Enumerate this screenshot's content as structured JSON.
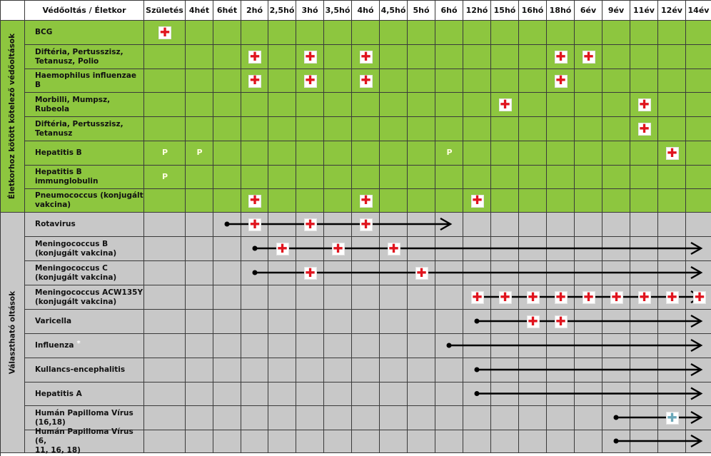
{
  "header": {
    "title": "Védőoltás / Életkor",
    "ages": [
      "Születés",
      "4hét",
      "6hét",
      "2hó",
      "2,5hó",
      "3hó",
      "3,5hó",
      "4hó",
      "4,5hó",
      "5hó",
      "6hó",
      "12hó",
      "15hó",
      "16hó",
      "18hó",
      "6év",
      "9év",
      "11év",
      "12év",
      "14év"
    ]
  },
  "sections": {
    "mandatory": "Életkorhoz kötött kötelező védőoltások",
    "optional": "Választható oltások"
  },
  "symbols": {
    "dose": "✚",
    "passive": "P",
    "footnote": "*"
  },
  "colors": {
    "mandatory_bg": "#8dc63f",
    "optional_bg": "#c8c8c8",
    "dose_red": "#e0141e",
    "dose_teal": "#6aa7b8"
  },
  "vaccines": [
    {
      "name": "BCG",
      "section": "mandatory",
      "doses": [
        "Születés"
      ],
      "passive": []
    },
    {
      "name": "Diftéria, Pertusszisz,\nTetanusz, Polio",
      "section": "mandatory",
      "doses": [
        "2hó",
        "3hó",
        "4hó",
        "18hó",
        "6év"
      ],
      "passive": []
    },
    {
      "name": "Haemophilus influenzae B",
      "section": "mandatory",
      "doses": [
        "2hó",
        "3hó",
        "4hó",
        "18hó"
      ],
      "passive": []
    },
    {
      "name": "Morbilli, Mumpsz, Rubeola",
      "section": "mandatory",
      "doses": [
        "15hó",
        "11év"
      ],
      "passive": []
    },
    {
      "name": "Diftéria, Pertusszisz,\nTetanusz",
      "section": "mandatory",
      "doses": [
        "11év"
      ],
      "passive": []
    },
    {
      "name": "Hepatitis B",
      "section": "mandatory",
      "doses": [
        "12év"
      ],
      "passive": [
        "Születés",
        "4hét",
        "6hó"
      ]
    },
    {
      "name": "Hepatitis B immunglobulin",
      "section": "mandatory",
      "doses": [],
      "passive": [
        "Születés"
      ]
    },
    {
      "name": "Pneumococcus (konjugált\nvakcina)",
      "section": "mandatory",
      "doses": [
        "2hó",
        "4hó",
        "12hó"
      ],
      "passive": []
    },
    {
      "name": "Rotavirus",
      "section": "optional",
      "doses": [
        "2hó",
        "3hó",
        "4hó"
      ],
      "range": {
        "from": "6hét",
        "to": "6hó"
      }
    },
    {
      "name": "Meningococcus B\n(konjugált vakcina)",
      "section": "optional",
      "doses": [
        "2,5hó",
        "3,5hó",
        "4,5hó"
      ],
      "range": {
        "from": "2hó",
        "to": "14év"
      }
    },
    {
      "name": "Meningococcus C\n(konjugált vakcina)",
      "section": "optional",
      "doses": [
        "3hó",
        "5hó"
      ],
      "range": {
        "from": "2hó",
        "to": "14év"
      }
    },
    {
      "name": "Meningococcus ACW135Y\n(konjugált vakcina)",
      "section": "optional",
      "doses": [
        "12hó",
        "15hó",
        "16hó",
        "18hó",
        "6év",
        "9év",
        "11év",
        "12év",
        "14év"
      ],
      "range": {
        "from": "12hó",
        "to": "14év"
      }
    },
    {
      "name": "Varicella",
      "section": "optional",
      "doses": [
        "16hó",
        "18hó"
      ],
      "range": {
        "from": "12hó",
        "to": "14év"
      }
    },
    {
      "name": "Influenza",
      "footnote": true,
      "section": "optional",
      "doses": [],
      "range": {
        "from": "6hó",
        "to": "14év"
      }
    },
    {
      "name": "Kullancs-encephalitis",
      "section": "optional",
      "doses": [],
      "range": {
        "from": "12hó",
        "to": "14év"
      }
    },
    {
      "name": "Hepatitis A",
      "section": "optional",
      "doses": [],
      "range": {
        "from": "12hó",
        "to": "14év"
      }
    },
    {
      "name": "Humán Papilloma Vírus\n(16,18)",
      "section": "optional",
      "doses": [],
      "teal_doses": [
        "12év"
      ],
      "range": {
        "from": "9év",
        "to": "14év"
      }
    },
    {
      "name": "Humán Papilloma Vírus (6,\n11, 16, 18)",
      "section": "optional",
      "doses": [],
      "range": {
        "from": "9év",
        "to": "14év"
      }
    }
  ]
}
